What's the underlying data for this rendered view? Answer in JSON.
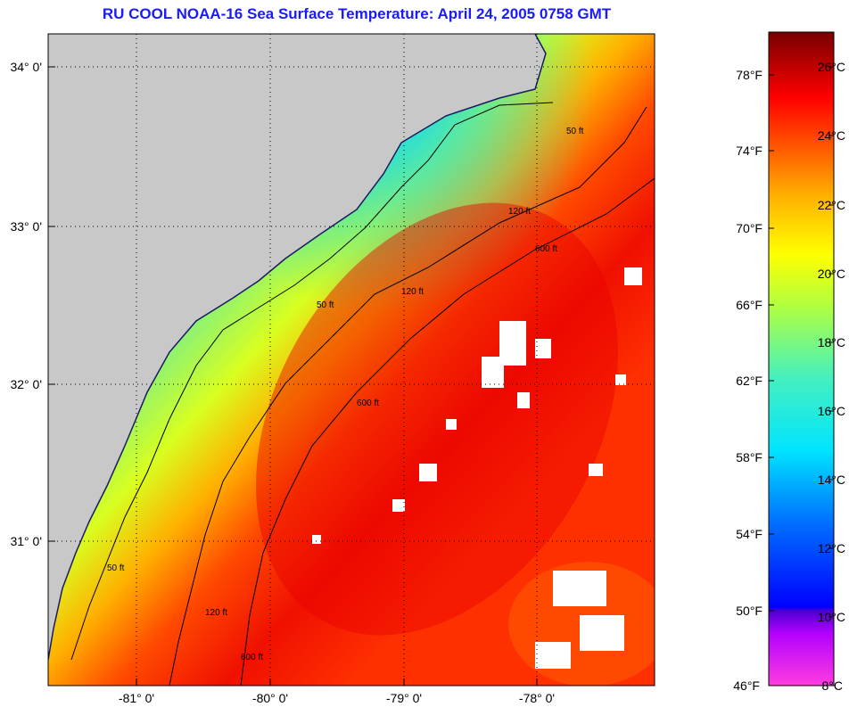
{
  "title": "RU COOL  NOAA-16  Sea Surface Temperature:  April 24, 2005 0758 GMT",
  "lat_labels": [
    "34° 0'",
    "33° 0'",
    "32° 0'",
    "31° 0'"
  ],
  "lon_labels": [
    "-81° 0'",
    "-80° 0'",
    "-79° 0'",
    "-78° 0'"
  ],
  "contour_labels": [
    "50 ft",
    "120 ft",
    "600 ft"
  ],
  "colorbar": {
    "fahrenheit_labels": [
      "78°F",
      "74°F",
      "70°F",
      "66°F",
      "62°F",
      "58°F",
      "54°F",
      "50°F",
      "46°F"
    ],
    "celsius_labels": [
      "26°C",
      "24°C",
      "22°C",
      "20°C",
      "18°C",
      "16°C",
      "14°C",
      "12°C",
      "10°C",
      "8°C"
    ],
    "range_c": [
      8,
      27
    ]
  },
  "colors": {
    "land": "#c8c8c8",
    "title": "#1a1aff",
    "cloud": "#ffffff"
  }
}
